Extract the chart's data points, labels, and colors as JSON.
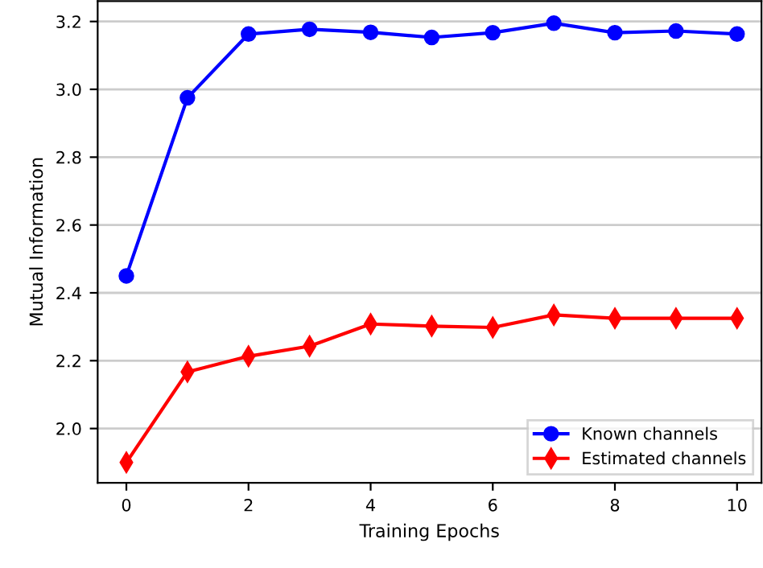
{
  "chart_data": {
    "type": "line",
    "xlabel": "Training Epochs",
    "ylabel": "Mutual Information",
    "x": [
      0,
      1,
      2,
      3,
      4,
      5,
      6,
      7,
      8,
      9,
      10
    ],
    "series": [
      {
        "name": "Known channels",
        "color": "#0000ff",
        "marker": "circle",
        "values": [
          2.45,
          2.975,
          3.163,
          3.177,
          3.168,
          3.153,
          3.167,
          3.195,
          3.167,
          3.172,
          3.163
        ]
      },
      {
        "name": "Estimated channels",
        "color": "#ff0000",
        "marker": "diamond",
        "values": [
          1.9,
          2.167,
          2.213,
          2.243,
          2.308,
          2.302,
          2.298,
          2.335,
          2.325,
          2.325,
          2.325
        ]
      }
    ],
    "xlim": [
      -0.47,
      10.4
    ],
    "ylim": [
      1.84,
      3.26
    ],
    "xticks": [
      0,
      2,
      4,
      6,
      8,
      10
    ],
    "yticks": [
      {
        "value": 2,
        "label": "2.0"
      },
      2.2,
      2.4,
      2.6,
      2.8,
      {
        "value": 3,
        "label": "3.0"
      },
      3.2
    ],
    "grid": "y",
    "legend": "bottom right",
    "line_style": "solid"
  }
}
